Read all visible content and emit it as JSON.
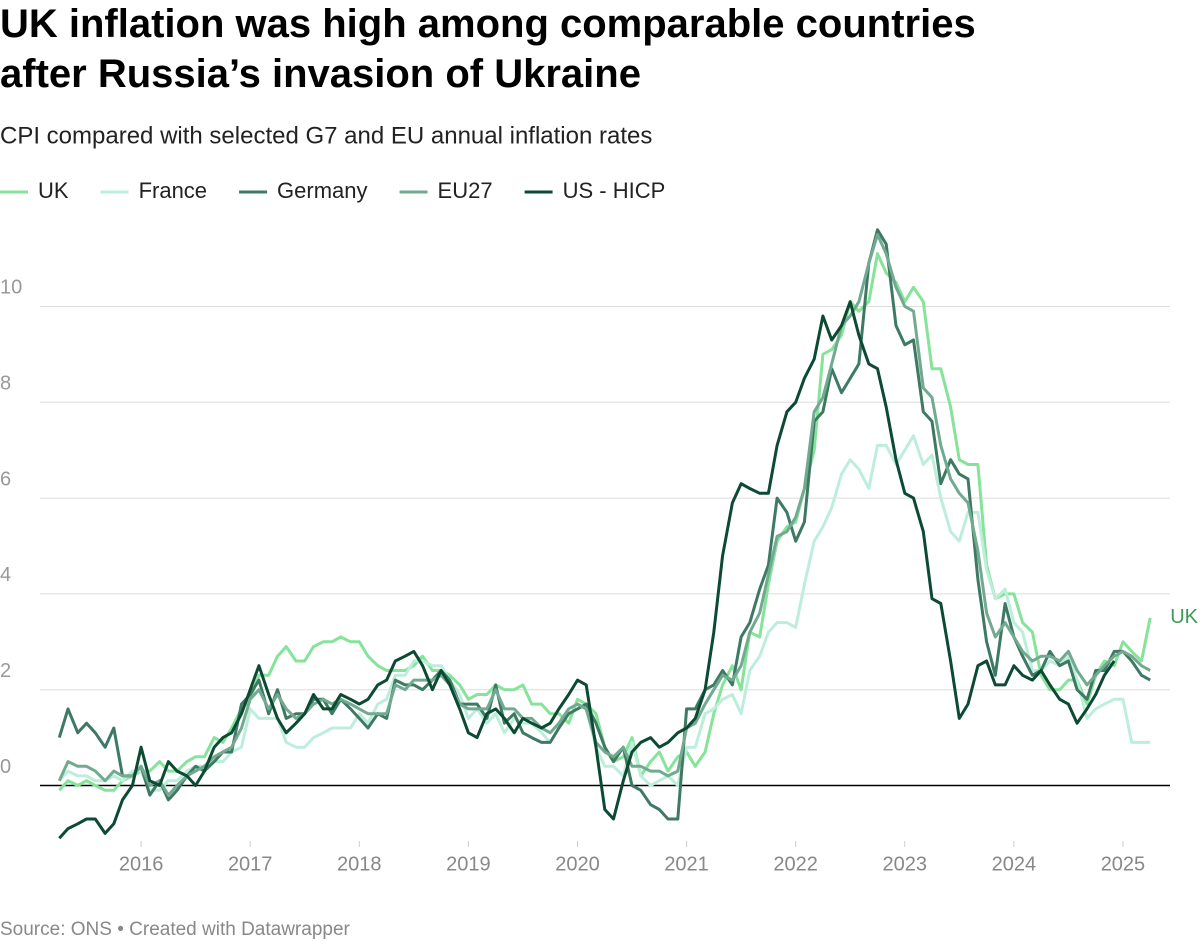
{
  "chart_data": {
    "type": "line",
    "title": "UK inflation was high among comparable countries after Russia’s invasion of Ukraine",
    "subtitle": "CPI compared with selected G7 and EU annual inflation rates",
    "source": "Source: ONS • Created with Datawrapper",
    "annotations": [
      {
        "text": "UK"
      }
    ],
    "x": [
      2015.25,
      2015.33,
      2015.42,
      2015.5,
      2015.58,
      2015.67,
      2015.75,
      2015.83,
      2015.92,
      2016,
      2016.08,
      2016.17,
      2016.25,
      2016.33,
      2016.42,
      2016.5,
      2016.58,
      2016.67,
      2016.75,
      2016.83,
      2016.92,
      2017,
      2017.08,
      2017.17,
      2017.25,
      2017.33,
      2017.42,
      2017.5,
      2017.58,
      2017.67,
      2017.75,
      2017.83,
      2017.92,
      2018,
      2018.08,
      2018.17,
      2018.25,
      2018.33,
      2018.42,
      2018.5,
      2018.58,
      2018.67,
      2018.75,
      2018.83,
      2018.92,
      2019,
      2019.08,
      2019.17,
      2019.25,
      2019.33,
      2019.42,
      2019.5,
      2019.58,
      2019.67,
      2019.75,
      2019.83,
      2019.92,
      2020,
      2020.08,
      2020.17,
      2020.25,
      2020.33,
      2020.42,
      2020.5,
      2020.58,
      2020.67,
      2020.75,
      2020.83,
      2020.92,
      2021,
      2021.08,
      2021.17,
      2021.25,
      2021.33,
      2021.42,
      2021.5,
      2021.58,
      2021.67,
      2021.75,
      2021.83,
      2021.92,
      2022,
      2022.08,
      2022.17,
      2022.25,
      2022.33,
      2022.42,
      2022.5,
      2022.58,
      2022.67,
      2022.75,
      2022.83,
      2022.92,
      2023,
      2023.08,
      2023.17,
      2023.25,
      2023.33,
      2023.42,
      2023.5,
      2023.58,
      2023.67,
      2023.75,
      2023.83,
      2023.92,
      2024,
      2024.08,
      2024.17,
      2024.25,
      2024.33,
      2024.42,
      2024.5,
      2024.58,
      2024.67,
      2024.75,
      2024.83,
      2024.92,
      2025,
      2025.08,
      2025.17,
      2025.25
    ],
    "series": [
      {
        "name": "UK",
        "color": "#86e39a",
        "values": [
          -0.1,
          0.1,
          0.0,
          0.1,
          0.0,
          -0.1,
          -0.1,
          0.1,
          0.2,
          0.3,
          0.3,
          0.5,
          0.3,
          0.3,
          0.5,
          0.6,
          0.6,
          1.0,
          0.9,
          1.2,
          1.6,
          1.8,
          2.3,
          2.3,
          2.7,
          2.9,
          2.6,
          2.6,
          2.9,
          3.0,
          3.0,
          3.1,
          3.0,
          3.0,
          2.7,
          2.5,
          2.4,
          2.4,
          2.4,
          2.5,
          2.7,
          2.4,
          2.4,
          2.3,
          2.1,
          1.8,
          1.9,
          1.9,
          2.1,
          2.0,
          2.0,
          2.1,
          1.7,
          1.7,
          1.5,
          1.5,
          1.3,
          1.8,
          1.7,
          1.5,
          0.8,
          0.5,
          0.6,
          1.0,
          0.2,
          0.5,
          0.7,
          0.3,
          0.6,
          0.7,
          0.4,
          0.7,
          1.5,
          2.1,
          2.5,
          2.0,
          3.2,
          3.1,
          4.2,
          5.1,
          5.4,
          5.5,
          6.2,
          7.0,
          9.0,
          9.1,
          9.4,
          10.1,
          9.9,
          10.1,
          11.1,
          10.7,
          10.5,
          10.1,
          10.4,
          10.1,
          8.7,
          8.7,
          7.9,
          6.8,
          6.7,
          6.7,
          4.6,
          3.9,
          4.0,
          4.0,
          3.4,
          3.2,
          2.3,
          2.0,
          2.0,
          2.2,
          2.2,
          1.7,
          2.3,
          2.6,
          2.5,
          3.0,
          2.8,
          2.6,
          3.5
        ]
      },
      {
        "name": "France",
        "color": "#bdeedb",
        "values": [
          0.1,
          0.3,
          0.2,
          0.2,
          0.1,
          0.1,
          0.2,
          0.1,
          0.3,
          0.3,
          -0.1,
          -0.1,
          0.1,
          0.1,
          0.3,
          0.4,
          0.4,
          0.5,
          0.5,
          0.7,
          0.8,
          1.6,
          1.4,
          1.4,
          1.4,
          0.9,
          0.8,
          0.8,
          1.0,
          1.1,
          1.2,
          1.2,
          1.2,
          1.5,
          1.3,
          1.7,
          1.8,
          2.3,
          2.3,
          2.6,
          2.6,
          2.5,
          2.5,
          2.2,
          1.9,
          1.4,
          1.6,
          1.3,
          1.5,
          1.1,
          1.4,
          1.3,
          1.3,
          1.1,
          0.9,
          1.2,
          1.6,
          1.7,
          1.6,
          0.8,
          0.4,
          0.4,
          0.2,
          0.9,
          0.2,
          0.0,
          0.1,
          0.2,
          0.0,
          0.8,
          0.8,
          1.5,
          1.6,
          1.8,
          1.9,
          1.5,
          2.4,
          2.7,
          3.2,
          3.4,
          3.4,
          3.3,
          4.2,
          5.1,
          5.4,
          5.8,
          6.5,
          6.8,
          6.6,
          6.2,
          7.1,
          7.1,
          6.7,
          7.0,
          7.3,
          6.7,
          6.9,
          6.0,
          5.3,
          5.1,
          5.7,
          5.7,
          4.5,
          3.9,
          4.1,
          3.4,
          3.2,
          2.4,
          2.4,
          2.6,
          2.5,
          2.7,
          2.2,
          1.4,
          1.6,
          1.7,
          1.8,
          1.8,
          0.9,
          0.9,
          0.9
        ]
      },
      {
        "name": "Germany",
        "color": "#3e7a63",
        "values": [
          1.0,
          1.6,
          1.1,
          1.3,
          1.1,
          0.8,
          1.2,
          0.2,
          0.2,
          0.4,
          -0.2,
          0.1,
          -0.3,
          -0.1,
          0.2,
          0.4,
          0.3,
          0.5,
          0.7,
          0.7,
          1.7,
          1.9,
          2.2,
          1.5,
          2.0,
          1.4,
          1.5,
          1.5,
          1.8,
          1.8,
          1.5,
          1.8,
          1.6,
          1.4,
          1.2,
          1.5,
          1.4,
          2.2,
          2.1,
          2.1,
          2.0,
          2.2,
          2.4,
          2.2,
          1.7,
          1.7,
          1.7,
          1.4,
          2.1,
          1.3,
          1.5,
          1.1,
          1.0,
          0.9,
          0.9,
          1.2,
          1.5,
          1.6,
          1.7,
          1.3,
          0.8,
          0.5,
          0.8,
          0.0,
          -0.1,
          -0.4,
          -0.5,
          -0.7,
          -0.7,
          1.6,
          1.6,
          2.0,
          2.1,
          2.4,
          2.1,
          3.1,
          3.4,
          4.1,
          4.6,
          6.0,
          5.7,
          5.1,
          5.5,
          7.6,
          7.8,
          8.7,
          8.2,
          8.5,
          8.8,
          10.9,
          11.6,
          11.3,
          9.6,
          9.2,
          9.3,
          7.8,
          7.6,
          6.3,
          6.8,
          6.5,
          6.4,
          4.3,
          3.0,
          2.3,
          3.8,
          3.1,
          2.7,
          2.3,
          2.4,
          2.8,
          2.5,
          2.6,
          2.0,
          1.8,
          2.4,
          2.4,
          2.8,
          2.8,
          2.6,
          2.3,
          2.2
        ]
      },
      {
        "name": "EU27",
        "color": "#72aa91",
        "values": [
          0.1,
          0.5,
          0.4,
          0.4,
          0.3,
          0.1,
          0.3,
          0.2,
          0.2,
          0.4,
          0.0,
          0.1,
          -0.2,
          0.0,
          0.2,
          0.3,
          0.4,
          0.6,
          0.7,
          0.8,
          1.2,
          1.8,
          2.0,
          1.6,
          1.9,
          1.6,
          1.4,
          1.5,
          1.7,
          1.8,
          1.7,
          1.8,
          1.7,
          1.6,
          1.5,
          1.5,
          1.5,
          2.1,
          2.0,
          2.2,
          2.2,
          2.2,
          2.3,
          2.1,
          1.7,
          1.6,
          1.6,
          1.6,
          2.0,
          1.6,
          1.6,
          1.4,
          1.4,
          1.2,
          1.1,
          1.3,
          1.6,
          1.7,
          1.6,
          0.9,
          0.7,
          0.6,
          0.8,
          0.4,
          0.4,
          0.3,
          0.3,
          0.2,
          0.3,
          1.2,
          1.3,
          1.7,
          2.0,
          2.3,
          2.2,
          2.5,
          3.2,
          3.6,
          4.4,
          5.2,
          5.3,
          5.6,
          6.2,
          7.8,
          8.1,
          8.8,
          9.6,
          9.8,
          10.1,
          10.9,
          11.5,
          11.1,
          10.4,
          10.0,
          9.9,
          8.3,
          8.1,
          7.1,
          6.4,
          6.1,
          5.9,
          4.9,
          3.6,
          3.1,
          3.4,
          3.1,
          2.8,
          2.6,
          2.7,
          2.7,
          2.6,
          2.8,
          2.4,
          2.1,
          2.3,
          2.5,
          2.7,
          2.8,
          2.7,
          2.5,
          2.4
        ]
      },
      {
        "name": "US - HICP",
        "color": "#0d4a34",
        "values": [
          -1.1,
          -0.9,
          -0.8,
          -0.7,
          -0.7,
          -1.0,
          -0.8,
          -0.3,
          0.0,
          0.8,
          0.1,
          0.0,
          0.5,
          0.3,
          0.2,
          0.0,
          0.3,
          0.8,
          1.0,
          1.1,
          1.5,
          2.0,
          2.5,
          1.9,
          1.4,
          1.1,
          1.3,
          1.5,
          1.9,
          1.6,
          1.6,
          1.9,
          1.8,
          1.7,
          1.8,
          2.1,
          2.2,
          2.6,
          2.7,
          2.8,
          2.5,
          2.0,
          2.4,
          2.1,
          1.6,
          1.1,
          1.0,
          1.5,
          1.6,
          1.4,
          1.1,
          1.4,
          1.3,
          1.2,
          1.3,
          1.6,
          1.9,
          2.2,
          2.1,
          0.8,
          -0.5,
          -0.7,
          0.1,
          0.7,
          0.9,
          1.0,
          0.8,
          0.9,
          1.1,
          1.2,
          1.4,
          2.0,
          3.2,
          4.8,
          5.9,
          6.3,
          6.2,
          6.1,
          6.1,
          7.1,
          7.8,
          8.0,
          8.5,
          8.9,
          9.8,
          9.3,
          9.6,
          10.1,
          9.4,
          8.8,
          8.7,
          7.9,
          6.8,
          6.1,
          6.0,
          5.3,
          3.9,
          3.8,
          2.6,
          1.4,
          1.7,
          2.5,
          2.6,
          2.1,
          2.1,
          2.5,
          2.3,
          2.2,
          2.4,
          2.1,
          1.8,
          1.7,
          1.3,
          1.6,
          1.9,
          2.3,
          2.6,
          null,
          null,
          null,
          null
        ]
      }
    ],
    "xlim": [
      2015,
      2025.5
    ],
    "xticks": [
      2016,
      2017,
      2018,
      2019,
      2020,
      2021,
      2022,
      2023,
      2024,
      2025
    ],
    "ylim": [
      -1.2,
      11.7
    ],
    "yticks": [
      0,
      2,
      4,
      6,
      8,
      10
    ],
    "grid": true
  }
}
